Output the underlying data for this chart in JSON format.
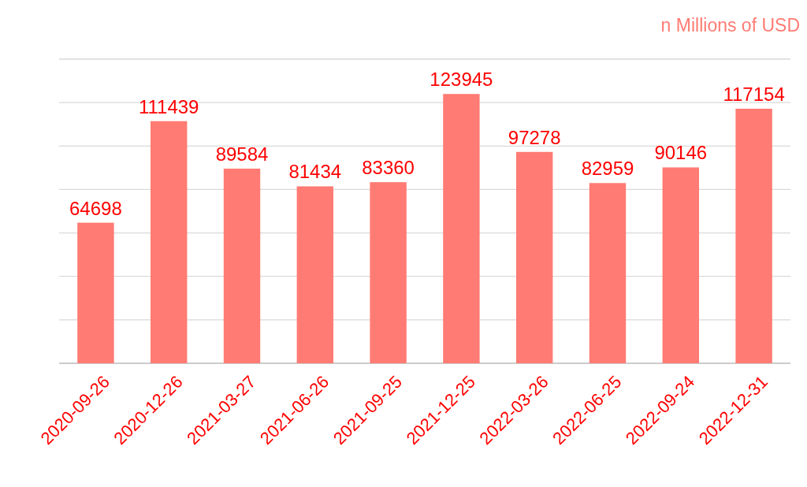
{
  "chart_data": {
    "type": "bar",
    "title": "n Millions of USD",
    "categories": [
      "2020-09-26",
      "2020-12-26",
      "2021-03-27",
      "2021-06-26",
      "2021-09-25",
      "2021-12-25",
      "2022-03-26",
      "2022-06-25",
      "2022-09-24",
      "2022-12-31"
    ],
    "values": [
      64698,
      111439,
      89584,
      81434,
      83360,
      123945,
      97278,
      82959,
      90146,
      117154
    ],
    "color": "#ff7b73",
    "ylim": [
      0,
      140000
    ],
    "yticks": [
      {
        "value": 0,
        "label": null
      },
      {
        "value": 20000,
        "label": null
      },
      {
        "value": 40000,
        "label": null
      },
      {
        "value": 60000,
        "label": null
      },
      {
        "value": 80000,
        "label": null
      },
      {
        "value": 100000,
        "label": null
      },
      {
        "value": 120000,
        "label": null
      },
      {
        "value": 140000,
        "label": null
      }
    ],
    "tick_labels": "x",
    "grid": true,
    "data_labels": true
  }
}
